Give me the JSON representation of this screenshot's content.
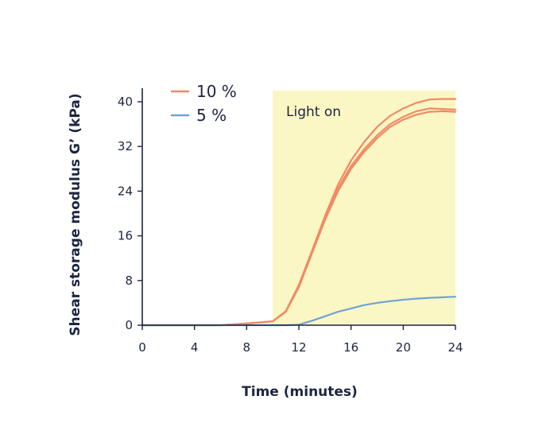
{
  "chart_data": {
    "type": "line",
    "xlabel": "Time (minutes)",
    "ylabel": "Shear storage modulus G’ (kPa)",
    "xlim": [
      0,
      24
    ],
    "ylim": [
      0,
      40
    ],
    "xticks": [
      "0",
      "4",
      "8",
      "12",
      "16",
      "20",
      "24"
    ],
    "yticks": [
      "0",
      "8",
      "16",
      "24",
      "32",
      "40"
    ],
    "grid": false,
    "legend_position": "top-left",
    "shaded_region": {
      "x_start": 10,
      "x_end": 24,
      "label": "Light on",
      "color": "#fbf7c4"
    },
    "series": [
      {
        "name": "10 %",
        "color": "#f08a66",
        "replicate": 1,
        "x": [
          0,
          6,
          8,
          10,
          11,
          12,
          13,
          14,
          15,
          16,
          17,
          18,
          19,
          20,
          21,
          22,
          23,
          24
        ],
        "y": [
          0,
          0,
          0.3,
          0.7,
          2.5,
          7,
          13,
          19,
          24.5,
          28.5,
          31.5,
          34,
          36,
          37.3,
          38.3,
          38.8,
          38.7,
          38.6
        ]
      },
      {
        "name": "10 %",
        "color": "#f08a66",
        "replicate": 2,
        "x": [
          0,
          6,
          8,
          10,
          11,
          12,
          13,
          14,
          15,
          16,
          17,
          18,
          19,
          20,
          21,
          22,
          23,
          24
        ],
        "y": [
          0,
          0,
          0.3,
          0.7,
          2.5,
          7.2,
          13.3,
          19.5,
          25.2,
          29.5,
          32.8,
          35.5,
          37.5,
          38.8,
          39.8,
          40.4,
          40.5,
          40.5
        ]
      },
      {
        "name": "10 %",
        "color": "#f08a66",
        "replicate": 3,
        "x": [
          0,
          6,
          8,
          10,
          11,
          12,
          13,
          14,
          15,
          16,
          17,
          18,
          19,
          20,
          21,
          22,
          23,
          24
        ],
        "y": [
          0,
          0,
          0.3,
          0.7,
          2.4,
          6.8,
          12.8,
          18.8,
          24,
          28,
          31,
          33.5,
          35.5,
          36.8,
          37.7,
          38.2,
          38.3,
          38.2
        ]
      },
      {
        "name": "5 %",
        "color": "#6fa3d8",
        "x": [
          0,
          11,
          12,
          13,
          14,
          15,
          16,
          17,
          18,
          19,
          20,
          21,
          22,
          23,
          24
        ],
        "y": [
          0,
          0,
          0.1,
          0.8,
          1.6,
          2.4,
          3.0,
          3.6,
          4.0,
          4.3,
          4.55,
          4.75,
          4.9,
          5.0,
          5.1
        ]
      }
    ]
  }
}
